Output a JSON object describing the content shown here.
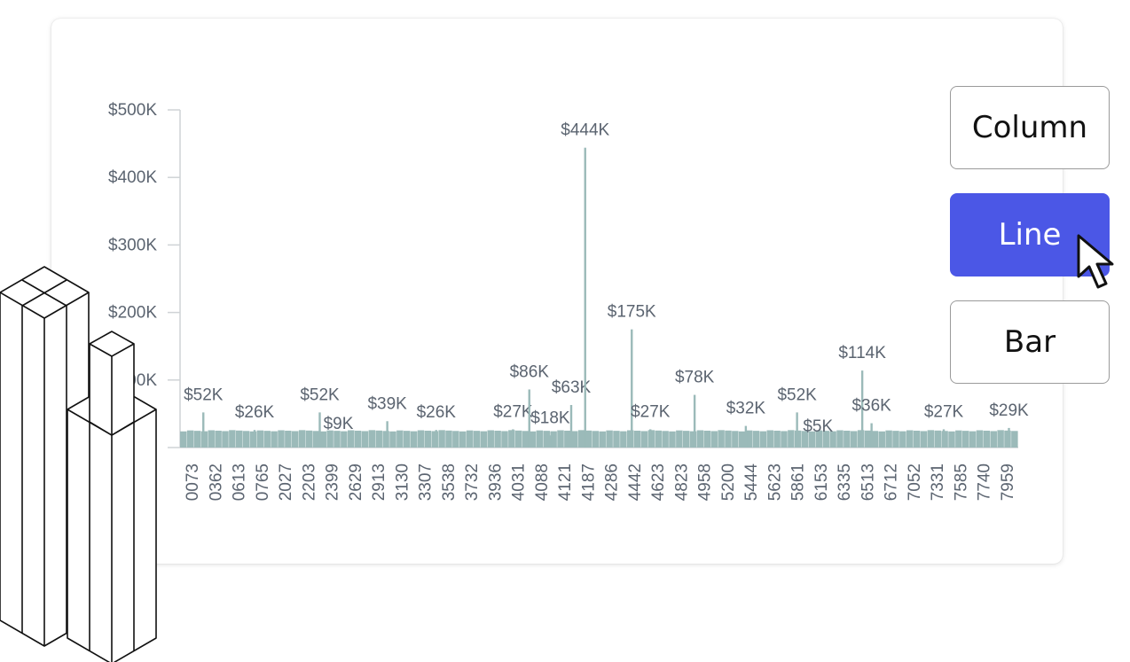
{
  "chart_type_buttons": [
    {
      "label": "Column",
      "active": false
    },
    {
      "label": "Line",
      "active": true
    },
    {
      "label": "Bar",
      "active": false
    }
  ],
  "colors": {
    "bars": "#9bbab9",
    "axis": "#cfd3d6",
    "text": "#5b6470",
    "active_button": "#4b57e6"
  },
  "chart_data": {
    "type": "bar",
    "title": "",
    "xlabel": "",
    "ylabel": "",
    "ylim": [
      0,
      500000
    ],
    "y_ticks": [
      "$500K",
      "$400K",
      "$300K",
      "$200K",
      "$100K"
    ],
    "categories": [
      "0073",
      "0362",
      "0613",
      "0765",
      "2027",
      "2203",
      "2399",
      "2629",
      "2913",
      "3130",
      "3307",
      "3538",
      "3732",
      "3936",
      "4031",
      "4088",
      "4121",
      "4187",
      "4286",
      "4442",
      "4623",
      "4823",
      "4958",
      "5200",
      "5444",
      "5623",
      "5861",
      "6153",
      "6335",
      "6513",
      "6712",
      "7052",
      "7331",
      "7585",
      "7740",
      "7959"
    ],
    "baseline": 26000,
    "peaks": [
      {
        "x": 0.5,
        "value": 52000,
        "label": "$52K"
      },
      {
        "x": 2.7,
        "value": 26000,
        "label": "$26K"
      },
      {
        "x": 5.5,
        "value": 52000,
        "label": "$52K"
      },
      {
        "x": 6.3,
        "value": 9000,
        "label": "$9K"
      },
      {
        "x": 8.4,
        "value": 39000,
        "label": "$39K"
      },
      {
        "x": 10.5,
        "value": 26000,
        "label": "$26K"
      },
      {
        "x": 13.8,
        "value": 27000,
        "label": "$27K"
      },
      {
        "x": 14.5,
        "value": 86000,
        "label": "$86K"
      },
      {
        "x": 15.4,
        "value": 18000,
        "label": "$18K"
      },
      {
        "x": 16.3,
        "value": 63000,
        "label": "$63K"
      },
      {
        "x": 16.9,
        "value": 444000,
        "label": "$444K"
      },
      {
        "x": 18.9,
        "value": 175000,
        "label": "$175K"
      },
      {
        "x": 19.7,
        "value": 27000,
        "label": "$27K"
      },
      {
        "x": 21.6,
        "value": 78000,
        "label": "$78K"
      },
      {
        "x": 23.8,
        "value": 32000,
        "label": "$32K"
      },
      {
        "x": 26.0,
        "value": 52000,
        "label": "$52K"
      },
      {
        "x": 26.9,
        "value": 5000,
        "label": "$5K"
      },
      {
        "x": 28.8,
        "value": 114000,
        "label": "$114K"
      },
      {
        "x": 29.2,
        "value": 36000,
        "label": "$36K"
      },
      {
        "x": 32.3,
        "value": 27000,
        "label": "$27K"
      },
      {
        "x": 35.1,
        "value": 29000,
        "label": "$29K"
      }
    ]
  }
}
